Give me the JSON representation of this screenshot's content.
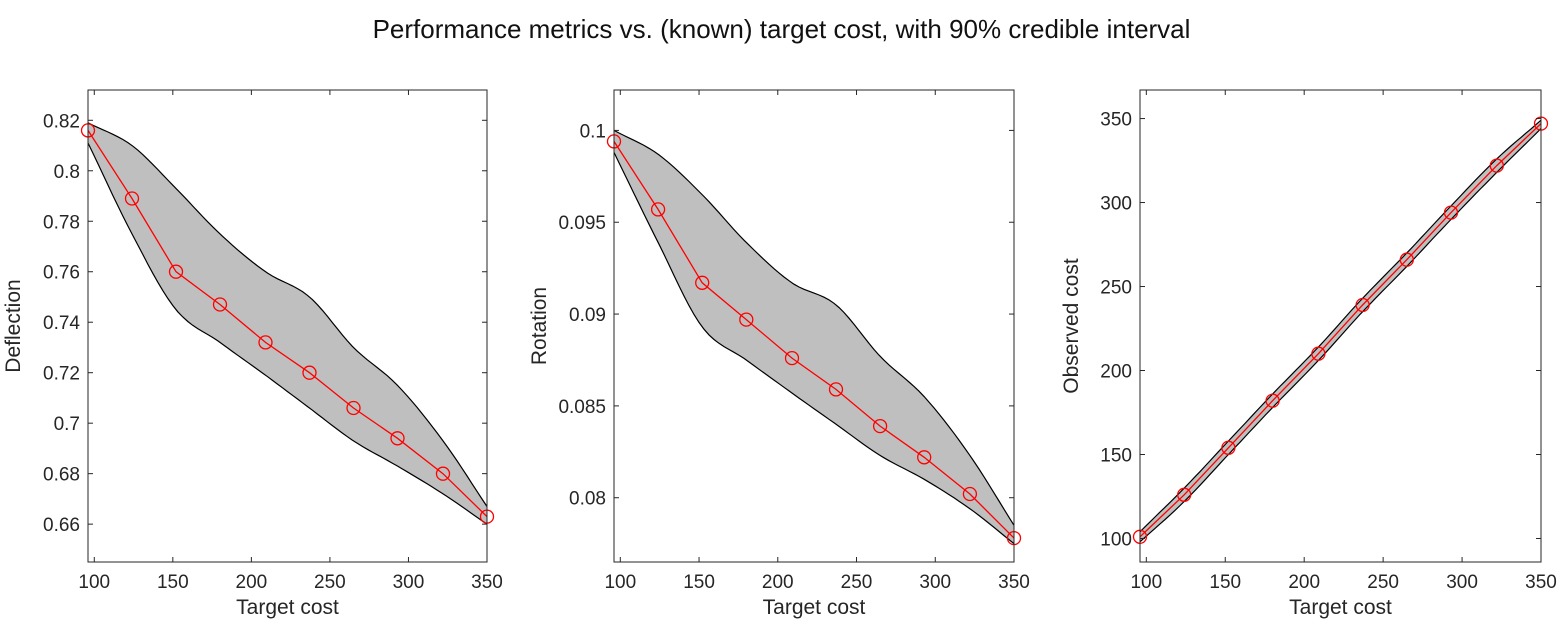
{
  "figure": {
    "title": "Performance metrics vs. (known) target cost, with 90% credible interval"
  },
  "colors": {
    "band_fill": "#bfbfbf",
    "band_edge": "#000000",
    "series": "#ff0000",
    "axis": "#262626"
  },
  "chart_data": [
    {
      "type": "line",
      "xlabel": "Target cost",
      "ylabel": "Deflection",
      "xlim": [
        96,
        350
      ],
      "ylim": [
        0.645,
        0.832
      ],
      "xticks": [
        100,
        150,
        200,
        250,
        300,
        350
      ],
      "yticks": [
        0.66,
        0.68,
        0.7,
        0.72,
        0.74,
        0.76,
        0.78,
        0.8,
        0.82
      ],
      "ytick_labels": [
        "0.66",
        "0.68",
        "0.7",
        "0.72",
        "0.74",
        "0.76",
        "0.78",
        "0.8",
        "0.82"
      ],
      "grid": false,
      "series": [
        {
          "x": [
            96,
            124,
            152,
            180,
            209,
            237,
            265,
            293,
            322,
            350
          ],
          "y": [
            0.816,
            0.789,
            0.76,
            0.747,
            0.732,
            0.72,
            0.706,
            0.694,
            0.68,
            0.663
          ]
        }
      ],
      "band": {
        "x": [
          96,
          124,
          152,
          180,
          209,
          237,
          265,
          293,
          322,
          350
        ],
        "upper": [
          0.819,
          0.81,
          0.793,
          0.775,
          0.76,
          0.75,
          0.73,
          0.715,
          0.693,
          0.667
        ],
        "lower": [
          0.811,
          0.775,
          0.745,
          0.732,
          0.719,
          0.706,
          0.693,
          0.683,
          0.672,
          0.66
        ]
      }
    },
    {
      "type": "line",
      "xlabel": "Target cost",
      "ylabel": "Rotation",
      "xlim": [
        96,
        350
      ],
      "ylim": [
        0.0765,
        0.1022
      ],
      "xticks": [
        100,
        150,
        200,
        250,
        300,
        350
      ],
      "yticks": [
        0.08,
        0.085,
        0.09,
        0.095,
        0.1
      ],
      "ytick_labels": [
        "0.08",
        "0.085",
        "0.09",
        "0.095",
        "0.1"
      ],
      "grid": false,
      "series": [
        {
          "x": [
            96,
            124,
            152,
            180,
            209,
            237,
            265,
            293,
            322,
            350
          ],
          "y": [
            0.0994,
            0.0957,
            0.0917,
            0.0897,
            0.0876,
            0.0859,
            0.0839,
            0.0822,
            0.0802,
            0.0778
          ]
        }
      ],
      "band": {
        "x": [
          96,
          124,
          152,
          180,
          209,
          237,
          265,
          293,
          322,
          350
        ],
        "upper": [
          0.1,
          0.0987,
          0.0965,
          0.0939,
          0.0917,
          0.0905,
          0.0877,
          0.0855,
          0.0823,
          0.0785
        ],
        "lower": [
          0.0988,
          0.0939,
          0.0893,
          0.0875,
          0.0857,
          0.084,
          0.0823,
          0.081,
          0.0794,
          0.0775
        ]
      }
    },
    {
      "type": "line",
      "xlabel": "Target cost",
      "ylabel": "Observed cost",
      "xlim": [
        96,
        350
      ],
      "ylim": [
        86,
        367
      ],
      "xticks": [
        100,
        150,
        200,
        250,
        300,
        350
      ],
      "yticks": [
        100,
        150,
        200,
        250,
        300,
        350
      ],
      "ytick_labels": [
        "100",
        "150",
        "200",
        "250",
        "300",
        "350"
      ],
      "grid": false,
      "series": [
        {
          "x": [
            96,
            124,
            152,
            180,
            209,
            237,
            265,
            293,
            322,
            350
          ],
          "y": [
            101,
            126,
            154,
            182,
            210,
            239,
            266,
            294,
            322,
            347
          ]
        }
      ],
      "band": {
        "x": [
          96,
          124,
          152,
          180,
          209,
          237,
          265,
          293,
          322,
          350
        ],
        "upper": [
          104,
          130,
          158,
          186,
          214,
          243,
          270,
          298,
          326,
          349
        ],
        "lower": [
          98,
          122,
          150,
          178,
          206,
          235,
          262,
          290,
          318,
          344
        ]
      }
    }
  ]
}
